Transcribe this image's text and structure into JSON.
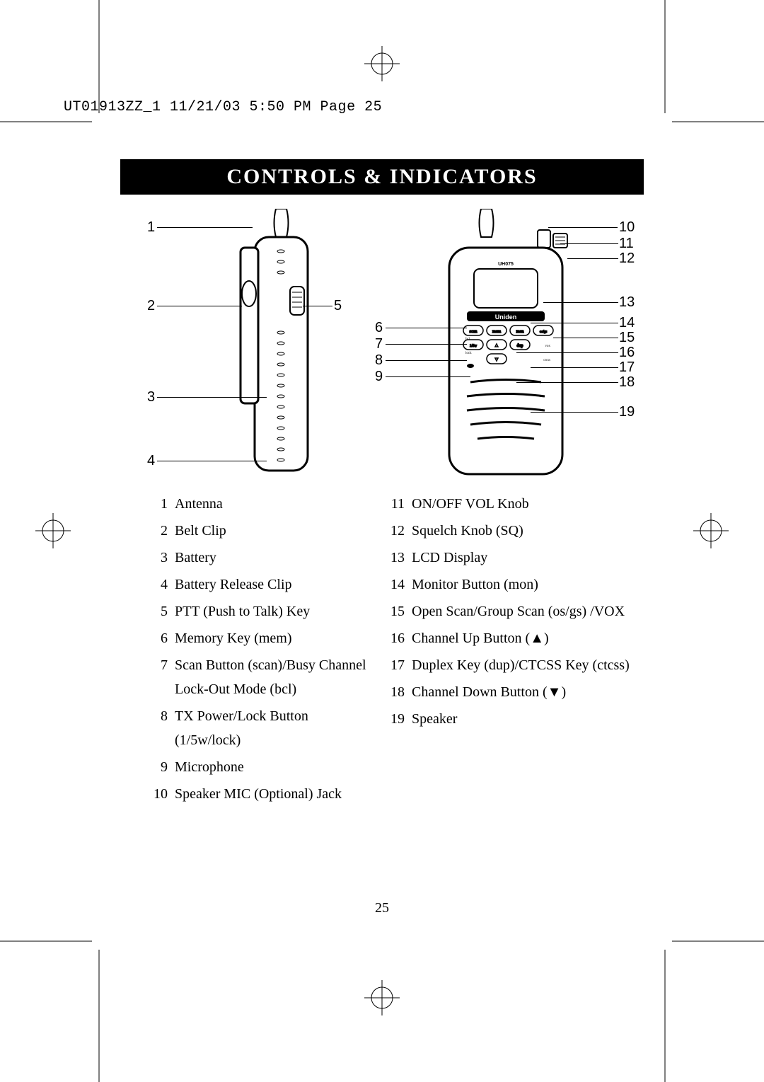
{
  "header": "UT01913ZZ_1  11/21/03  5:50 PM  Page 25",
  "title": "CONTROLS & INDICATORS",
  "page_number": "25",
  "left_callouts": [
    "1",
    "2",
    "3",
    "4",
    "5"
  ],
  "right_callouts_left": [
    "6",
    "7",
    "8",
    "9"
  ],
  "right_callouts_right": [
    "10",
    "11",
    "12",
    "13",
    "14",
    "15",
    "16",
    "17",
    "18",
    "19"
  ],
  "legend_left": [
    {
      "n": "1",
      "t": "Antenna"
    },
    {
      "n": "2",
      "t": "Belt Clip"
    },
    {
      "n": "3",
      "t": "Battery"
    },
    {
      "n": "4",
      "t": "Battery Release Clip"
    },
    {
      "n": "5",
      "t": "PTT (Push to Talk) Key"
    },
    {
      "n": "6",
      "t": "Memory Key (mem)"
    },
    {
      "n": "7",
      "t": "Scan Button (scan)/Busy Channel Lock-Out Mode (bcl)"
    },
    {
      "n": "8",
      "t": "TX Power/Lock Button (1/5w/lock)"
    },
    {
      "n": "9",
      "t": "Microphone"
    },
    {
      "n": "10",
      "t": "Speaker MIC (Optional) Jack"
    }
  ],
  "legend_right": [
    {
      "n": "11",
      "t": "ON/OFF VOL Knob"
    },
    {
      "n": "12",
      "t": "Squelch Knob (SQ)"
    },
    {
      "n": "13",
      "t": "LCD Display"
    },
    {
      "n": "14",
      "t": "Monitor Button (mon)"
    },
    {
      "n": "15",
      "t": "Open Scan/Group Scan (os/gs) /VOX"
    },
    {
      "n": "16",
      "t": "Channel Up Button (▲)"
    },
    {
      "n": "17",
      "t": "Duplex Key (dup)/CTCSS Key (ctcss)"
    },
    {
      "n": "18",
      "t": "Channel Down Button (▼)"
    },
    {
      "n": "19",
      "t": "Speaker"
    }
  ],
  "brand": "Uniden",
  "model": "UH075"
}
